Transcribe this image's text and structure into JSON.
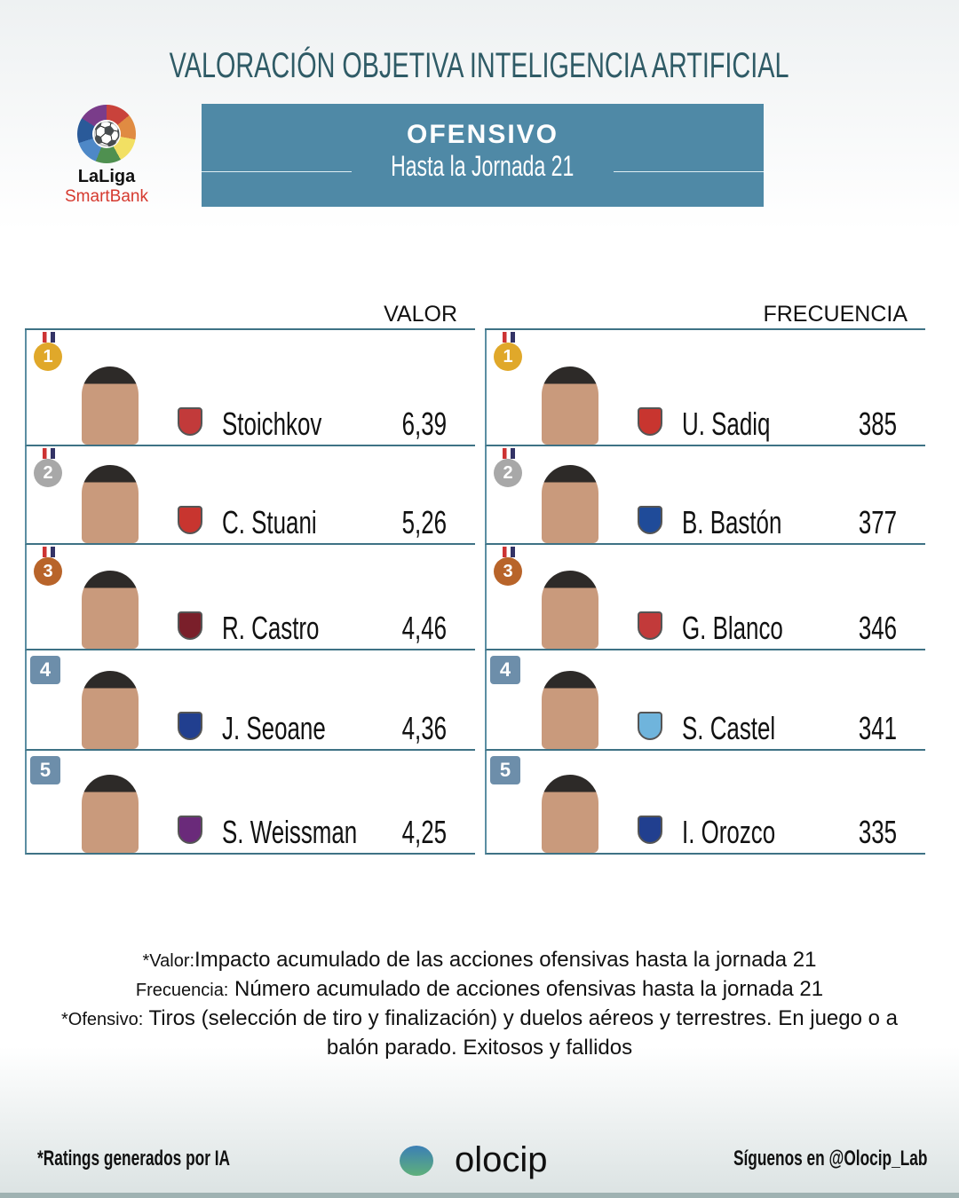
{
  "header": {
    "title": "VALORACIÓN OBJETIVA INTELIGENCIA ARTIFICIAL",
    "category": "OFENSIVO",
    "subtitle": "Hasta la Jornada 21"
  },
  "logo": {
    "line1": "LaLiga",
    "line2": "SmartBank"
  },
  "valor": {
    "heading": "VALOR",
    "rows": [
      {
        "rank": "1",
        "name": "Stoichkov",
        "value": "6,39",
        "crest": "#c23a3a"
      },
      {
        "rank": "2",
        "name": "C. Stuani",
        "value": "5,26",
        "crest": "#c8352f"
      },
      {
        "rank": "3",
        "name": "R. Castro",
        "value": "4,46",
        "crest": "#7a1f2a"
      },
      {
        "rank": "4",
        "name": "J. Seoane",
        "value": "4,36",
        "crest": "#213f8f"
      },
      {
        "rank": "5",
        "name": "S. Weissman",
        "value": "4,25",
        "crest": "#6a2a7a"
      }
    ]
  },
  "frecuencia": {
    "heading": "FRECUENCIA",
    "rows": [
      {
        "rank": "1",
        "name": "U. Sadiq",
        "value": "385",
        "crest": "#c8352f"
      },
      {
        "rank": "2",
        "name": "B. Bastón",
        "value": "377",
        "crest": "#1f4b99"
      },
      {
        "rank": "3",
        "name": "G. Blanco",
        "value": "346",
        "crest": "#c23a3a"
      },
      {
        "rank": "4",
        "name": "S. Castel",
        "value": "341",
        "crest": "#6fb4dc"
      },
      {
        "rank": "5",
        "name": "I. Orozco",
        "value": "335",
        "crest": "#213f8f"
      }
    ]
  },
  "medal_colors": {
    "1": "#e0a82a",
    "2": "#a8a8a8",
    "3": "#b8642a"
  },
  "notes": [
    {
      "term": "*Valor:",
      "text": " Impacto acumulado de las acciones ofensivas hasta la jornada 21"
    },
    {
      "term": "Frecuencia:",
      "text": " Número acumulado de acciones ofensivas hasta la jornada 21"
    },
    {
      "term": "*Ofensivo:",
      "text": " Tiros (selección de tiro y finalización) y duelos aéreos y terrestres. En juego o a balón parado. Exitosos y fallidos"
    }
  ],
  "footer": {
    "left": "*Ratings generados por IA",
    "brand": "olocip",
    "right": "Síguenos en @Olocip_Lab"
  }
}
